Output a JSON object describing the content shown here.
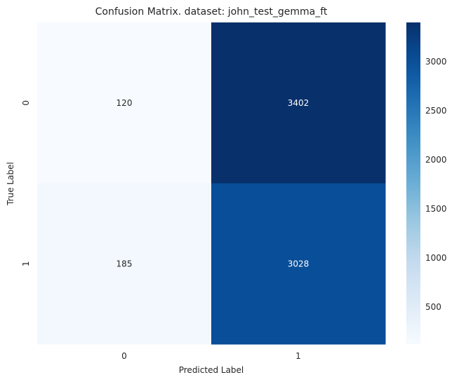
{
  "chart_data": {
    "type": "heatmap",
    "title": "Confusion Matrix. dataset: john_test_gemma_ft",
    "xlabel": "Predicted Label",
    "ylabel": "True Label",
    "x_categories": [
      "0",
      "1"
    ],
    "y_categories": [
      "0",
      "1"
    ],
    "values": [
      [
        120,
        3402
      ],
      [
        185,
        3028
      ]
    ],
    "colormap": "Blues",
    "colorbar": {
      "range": [
        120,
        3402
      ],
      "ticks": [
        500,
        1000,
        1500,
        2000,
        2500,
        3000
      ],
      "tick_labels": [
        "500",
        "1000",
        "1500",
        "2000",
        "2500",
        "3000"
      ]
    },
    "grid": false,
    "legend": "none"
  }
}
